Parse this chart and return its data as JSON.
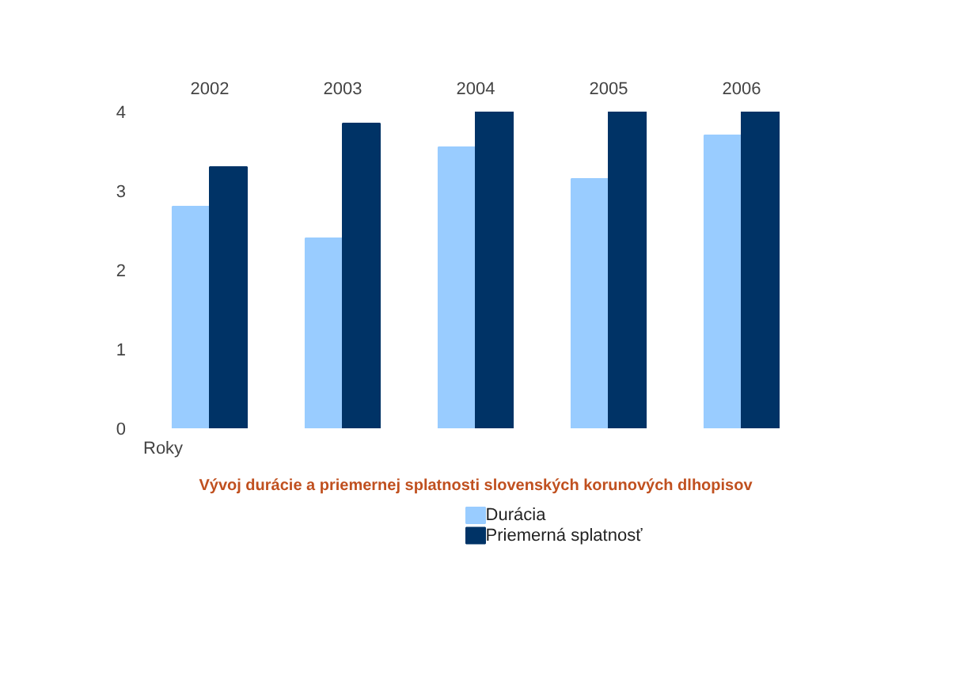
{
  "chart_data": {
    "type": "bar",
    "title": "Vývoj durácie a priemernej splatnosti slovenských korunových dlhopisov",
    "xlabel": "Roky",
    "categories": [
      "2002",
      "2003",
      "2004",
      "2005",
      "2006"
    ],
    "series": [
      {
        "name": "Durácia",
        "color": "#99ccff",
        "values": [
          2.8,
          2.4,
          3.55,
          3.15,
          3.7
        ]
      },
      {
        "name": "Priemerná splatnosť",
        "color": "#003366",
        "values": [
          3.3,
          3.85,
          4,
          4,
          4
        ]
      }
    ],
    "ylim": [
      0,
      4
    ],
    "yticks": [
      0,
      1,
      2,
      3,
      4
    ],
    "grid": false,
    "legend": "bottom"
  }
}
